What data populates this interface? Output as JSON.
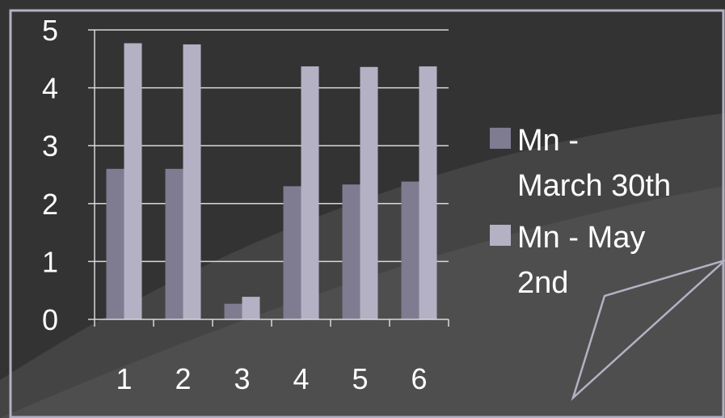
{
  "chart_data": {
    "type": "bar",
    "categories": [
      "1",
      "2",
      "3",
      "4",
      "5",
      "6"
    ],
    "series": [
      {
        "name": "Mn - March 30th",
        "values": [
          2.6,
          2.6,
          0.27,
          2.3,
          2.33,
          2.38
        ]
      },
      {
        "name": "Mn - May 2nd",
        "values": [
          4.77,
          4.75,
          0.39,
          4.37,
          4.36,
          4.37
        ]
      }
    ],
    "y_ticks": [
      "0",
      "1",
      "2",
      "3",
      "4",
      "5"
    ],
    "ylim": [
      0,
      5
    ],
    "grid": true,
    "legend_position": "right",
    "title": "",
    "xlabel": "",
    "ylabel": ""
  },
  "legend": {
    "series_1_lines": [
      "Mn -",
      "March 30th"
    ],
    "series_2_lines": [
      "Mn - May",
      "2nd"
    ]
  },
  "colors": {
    "series_1": "#7f7b91",
    "series_2": "#b4b1c4",
    "background_dark": "#333333",
    "background_light": "#4a4a4a",
    "text": "#ffffff",
    "frame": "#b4b1c4",
    "gridline": "#d8d8d8"
  }
}
